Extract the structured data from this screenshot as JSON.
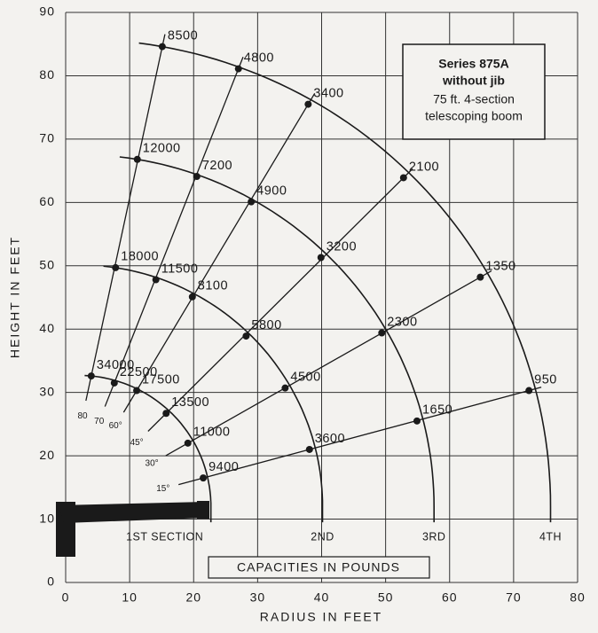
{
  "chart_data": {
    "type": "scatter",
    "annotation": [
      "Series 875A",
      "without jib",
      "75 ft. 4-section",
      "telescoping boom"
    ],
    "caption": "CAPACITIES IN POUNDS",
    "x_label": "RADIUS IN FEET",
    "y_label": "HEIGHT IN FEET",
    "xlim": [
      0,
      80
    ],
    "xticks": [
      0,
      10,
      20,
      30,
      40,
      50,
      60,
      70,
      80
    ],
    "ylim": [
      0,
      90
    ],
    "yticks": [
      0,
      10,
      20,
      30,
      40,
      50,
      60,
      70,
      80,
      90
    ],
    "grid": true,
    "angle_labels": [
      "80",
      "70",
      "60°",
      "45°",
      "30°",
      "15°"
    ],
    "series": [
      {
        "name": "1ST SECTION",
        "color": "#1a1a1a",
        "x": [
          4.0,
          7.6,
          11.1,
          15.7,
          19.1,
          21.5
        ],
        "y": [
          32.6,
          31.5,
          30.3,
          26.7,
          22.0,
          16.5
        ],
        "capacity": [
          34000,
          22500,
          17500,
          13500,
          11000,
          9400
        ]
      },
      {
        "name": "2ND",
        "color": "#1a1a1a",
        "x": [
          7.8,
          14.1,
          19.8,
          28.2,
          34.3,
          38.1
        ],
        "y": [
          49.7,
          47.8,
          45.1,
          38.9,
          30.7,
          21.0
        ],
        "capacity": [
          18000,
          11500,
          8100,
          5800,
          4500,
          3600
        ]
      },
      {
        "name": "3RD",
        "color": "#1a1a1a",
        "x": [
          11.2,
          20.5,
          29.0,
          39.9,
          49.4,
          54.9
        ],
        "y": [
          66.8,
          64.1,
          60.1,
          51.3,
          39.4,
          25.5
        ],
        "capacity": [
          12000,
          7200,
          4900,
          3200,
          2300,
          1650
        ]
      },
      {
        "name": "4TH",
        "color": "#1a1a1a",
        "x": [
          15.1,
          27.0,
          37.9,
          52.8,
          64.8,
          72.4
        ],
        "y": [
          84.6,
          81.1,
          75.5,
          63.9,
          48.2,
          30.3
        ],
        "capacity": [
          8500,
          4800,
          3400,
          2100,
          1350,
          950
        ]
      }
    ]
  }
}
